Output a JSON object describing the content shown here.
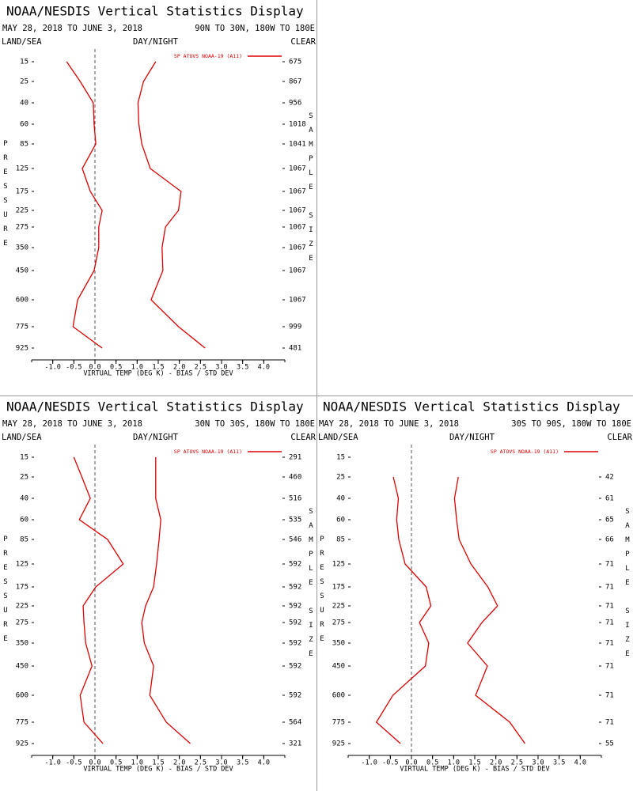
{
  "chart_data": [
    {
      "type": "profile",
      "title": "NOAA/NESDIS Vertical Statistics Display",
      "subtitle": "MAY 28, 2018 TO JUNE 3, 2018",
      "region": "90N TO 30N, 180W TO 180E",
      "land_sea": "LAND/SEA",
      "day_night": "DAY/NIGHT",
      "clear": "CLEAR",
      "y_label": "PRESSURE",
      "y2_label": "SAMPLE SIZE",
      "x_label": "VIRTUAL TEMP (DEG K) - BIAS / STD DEV",
      "categories": [
        15,
        25,
        40,
        60,
        85,
        125,
        175,
        225,
        275,
        350,
        450,
        600,
        775,
        925
      ],
      "sample_sizes": [
        675,
        867,
        956,
        1018,
        1041,
        1067,
        1067,
        1067,
        1067,
        1067,
        1067,
        1067,
        999,
        481
      ],
      "series": [
        {
          "name": "SP ATOVS NOAA-19 (A11)",
          "color": "#dd0000",
          "values": [
            -0.67,
            -0.35,
            -0.04,
            -0.02,
            0.02,
            -0.3,
            -0.11,
            0.17,
            0.09,
            0.09,
            -0.02,
            -0.41,
            -0.52,
            0.17
          ],
          "std_dev": [
            1.44,
            1.15,
            1.02,
            1.04,
            1.11,
            1.31,
            2.04,
            1.98,
            1.67,
            1.59,
            1.61,
            1.33,
            1.98,
            2.61
          ]
        }
      ],
      "xlim": [
        -1.5,
        4.5
      ],
      "xticks": [
        {
          "value": -1,
          "label": "-1.0"
        },
        -0.5,
        {
          "value": 0,
          "label": "0.0"
        },
        0.5,
        {
          "value": 1,
          "label": "1.0"
        },
        1.5,
        {
          "value": 2,
          "label": "2.0"
        },
        2.5,
        {
          "value": 3,
          "label": "3.0"
        },
        3.5,
        {
          "value": 4,
          "label": "4.0"
        }
      ]
    },
    {
      "type": "profile",
      "title": "NOAA/NESDIS Vertical Statistics Display",
      "subtitle": "MAY 28, 2018 TO JUNE 3, 2018",
      "region": "30N TO 30S, 180W TO 180E",
      "land_sea": "LAND/SEA",
      "day_night": "DAY/NIGHT",
      "clear": "CLEAR",
      "y_label": "PRESSURE",
      "y2_label": "SAMPLE SIZE",
      "x_label": "VIRTUAL TEMP (DEG K) - BIAS / STD DEV",
      "categories": [
        15,
        25,
        40,
        60,
        85,
        125,
        175,
        225,
        275,
        350,
        450,
        600,
        775,
        925
      ],
      "sample_sizes": [
        291,
        460,
        516,
        535,
        546,
        592,
        592,
        592,
        592,
        592,
        592,
        592,
        564,
        321
      ],
      "series": [
        {
          "name": "SP ATOVS NOAA-19 (A11)",
          "color": "#dd0000",
          "values": [
            -0.5,
            -0.31,
            -0.11,
            -0.37,
            0.3,
            0.67,
            0.02,
            -0.28,
            -0.26,
            -0.22,
            -0.07,
            -0.35,
            -0.26,
            0.19
          ],
          "std_dev": [
            1.44,
            1.44,
            1.44,
            1.56,
            1.52,
            1.46,
            1.39,
            1.2,
            1.11,
            1.17,
            1.39,
            1.3,
            1.69,
            2.26
          ]
        }
      ],
      "xlim": [
        -1.5,
        4.5
      ],
      "xticks": [
        {
          "value": -1,
          "label": "-1.0"
        },
        -0.5,
        {
          "value": 0,
          "label": "0.0"
        },
        0.5,
        {
          "value": 1,
          "label": "1.0"
        },
        1.5,
        {
          "value": 2,
          "label": "2.0"
        },
        2.5,
        {
          "value": 3,
          "label": "3.0"
        },
        3.5,
        {
          "value": 4,
          "label": "4.0"
        }
      ]
    },
    {
      "type": "profile",
      "title": "NOAA/NESDIS Vertical Statistics Display",
      "subtitle": "MAY 28, 2018 TO JUNE 3, 2018",
      "region": "30S TO 90S, 180W TO 180E",
      "land_sea": "LAND/SEA",
      "day_night": "DAY/NIGHT",
      "clear": "CLEAR",
      "y_label": "PRESSURE",
      "y2_label": "SAMPLE SIZE",
      "x_label": "VIRTUAL TEMP (DEG K) - BIAS / STD DEV",
      "categories": [
        15,
        25,
        40,
        60,
        85,
        125,
        175,
        225,
        275,
        350,
        450,
        600,
        775,
        925
      ],
      "sample_sizes": [
        null,
        42,
        61,
        65,
        66,
        71,
        71,
        71,
        71,
        71,
        71,
        71,
        71,
        55
      ],
      "series": [
        {
          "name": "SP ATOVS NOAA-19 (A11)",
          "color": "#dd0000",
          "values": [
            null,
            -0.43,
            -0.31,
            -0.35,
            -0.3,
            -0.15,
            0.35,
            0.46,
            0.19,
            0.41,
            0.33,
            -0.44,
            -0.83,
            -0.26
          ],
          "std_dev": [
            null,
            1.11,
            1.02,
            1.07,
            1.13,
            1.41,
            1.81,
            2.04,
            1.67,
            1.33,
            1.8,
            1.52,
            2.33,
            2.69
          ]
        }
      ],
      "xlim": [
        -1.5,
        4.5
      ],
      "xticks": [
        {
          "value": -1,
          "label": "-1.0"
        },
        -0.5,
        {
          "value": 0,
          "label": "0.0"
        },
        0.5,
        {
          "value": 1,
          "label": "1.0"
        },
        1.5,
        {
          "value": 2,
          "label": "2.0"
        },
        2.5,
        {
          "value": 3,
          "label": "3.0"
        },
        3.5,
        {
          "value": 4,
          "label": "4.0"
        }
      ]
    }
  ]
}
